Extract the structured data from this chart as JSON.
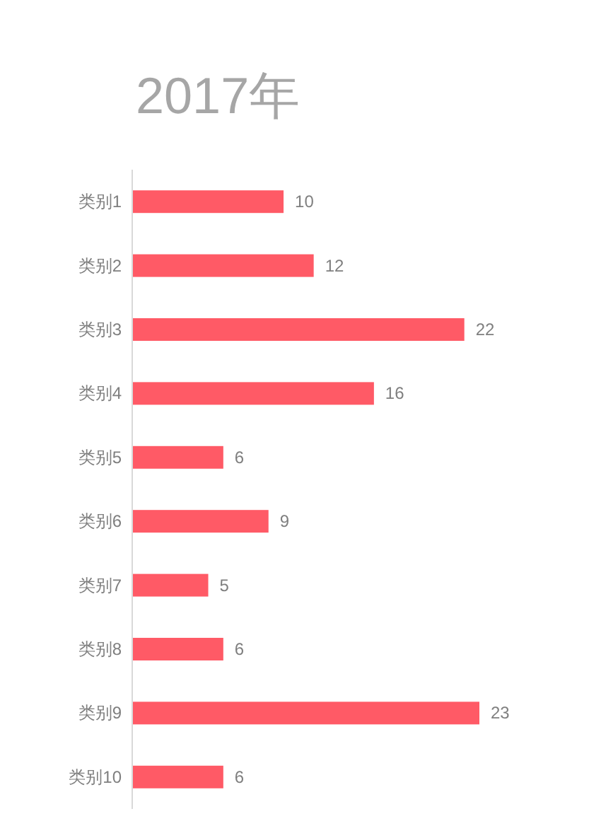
{
  "chart_data": {
    "type": "bar",
    "orientation": "horizontal",
    "title": "2017年",
    "categories": [
      "类别1",
      "类别2",
      "类别3",
      "类别4",
      "类别5",
      "类别6",
      "类别7",
      "类别8",
      "类别9",
      "类别10"
    ],
    "values": [
      10,
      12,
      22,
      16,
      6,
      9,
      5,
      6,
      23,
      6
    ],
    "color": "#ff5a66",
    "data_labels": true
  }
}
